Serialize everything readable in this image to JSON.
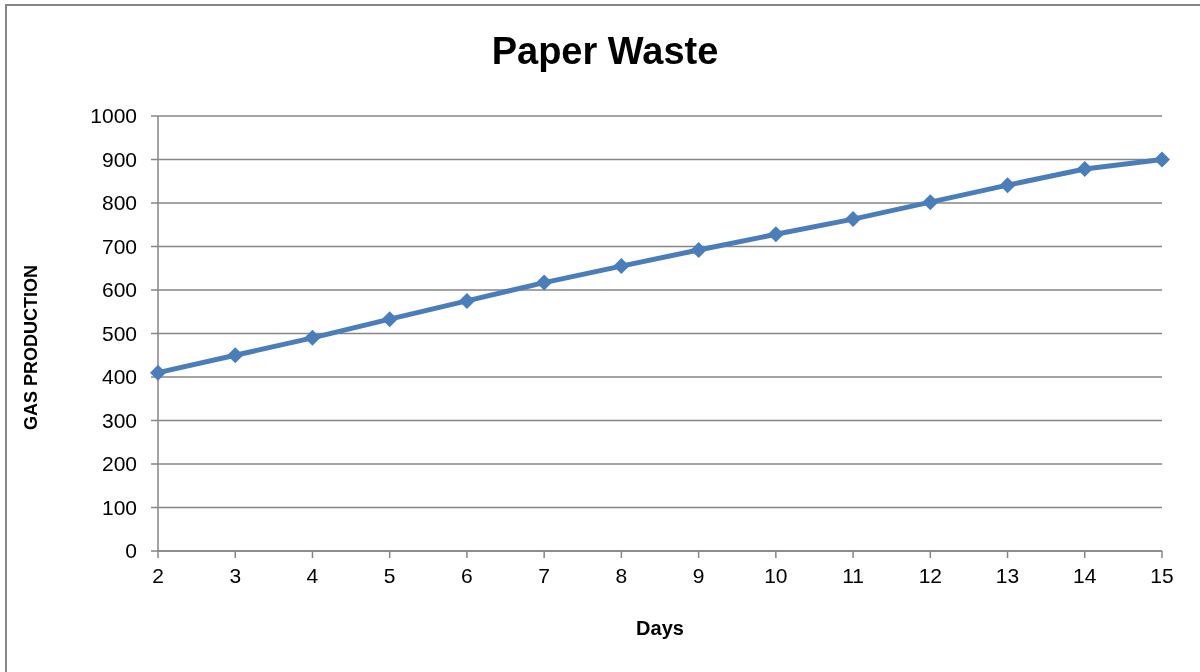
{
  "chart_data": {
    "type": "line",
    "title": "Paper Waste",
    "xlabel": "Days",
    "ylabel": "GAS PRODUCTION",
    "categories": [
      "2",
      "3",
      "4",
      "5",
      "6",
      "7",
      "8",
      "9",
      "10",
      "11",
      "12",
      "13",
      "14",
      "15"
    ],
    "values": [
      410,
      450,
      490,
      533,
      575,
      617,
      655,
      692,
      728,
      763,
      802,
      841,
      878,
      900
    ],
    "color": "#4a7ebb",
    "ylim": [
      0,
      1000
    ],
    "yticks": [
      0,
      100,
      200,
      300,
      400,
      500,
      600,
      700,
      800,
      900,
      1000
    ],
    "grid": "y",
    "marker": "diamond",
    "line_style": "solid"
  }
}
